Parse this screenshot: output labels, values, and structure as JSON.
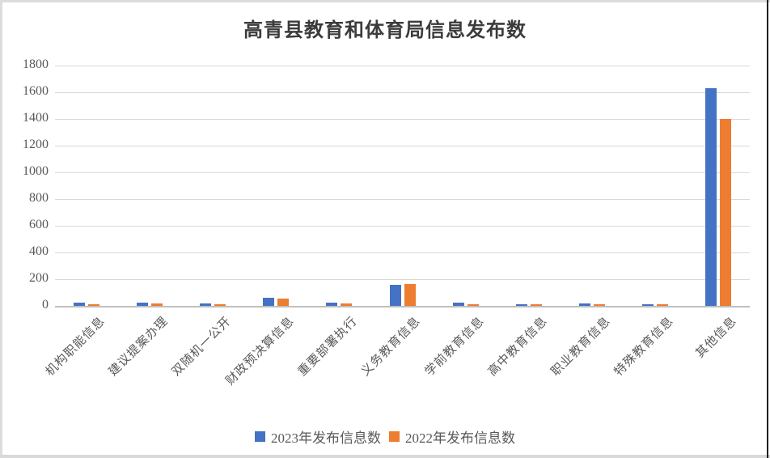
{
  "chart_data": {
    "type": "bar",
    "title": "高青县教育和体育局信息发布数",
    "categories": [
      "机构职能信息",
      "建议提案办理",
      "双随机一公开",
      "财政预决算信息",
      "重要部署执行",
      "义务教育信息",
      "学前教育信息",
      "高中教育信息",
      "职业教育信息",
      "特殊教育信息",
      "其他信息"
    ],
    "series": [
      {
        "name": "2023年发布信息数",
        "color": "#4472C4",
        "values": [
          25,
          24,
          18,
          60,
          25,
          160,
          22,
          14,
          16,
          14,
          1630
        ]
      },
      {
        "name": "2022年发布信息数",
        "color": "#ED7D31",
        "values": [
          15,
          20,
          14,
          55,
          20,
          165,
          12,
          12,
          14,
          12,
          1400
        ]
      }
    ],
    "ylim": [
      0,
      1800
    ],
    "ytick_step": 200,
    "ytick_labels": [
      "0",
      "200",
      "400",
      "600",
      "800",
      "1000",
      "1200",
      "1400",
      "1600",
      "1800"
    ],
    "grid": true,
    "legend_position": "bottom",
    "style_colors": {
      "gridline": "#d9d9d9",
      "axis_line": "#bfbfbf",
      "tick_label": "#595959",
      "title": "#3b3b3b"
    }
  }
}
